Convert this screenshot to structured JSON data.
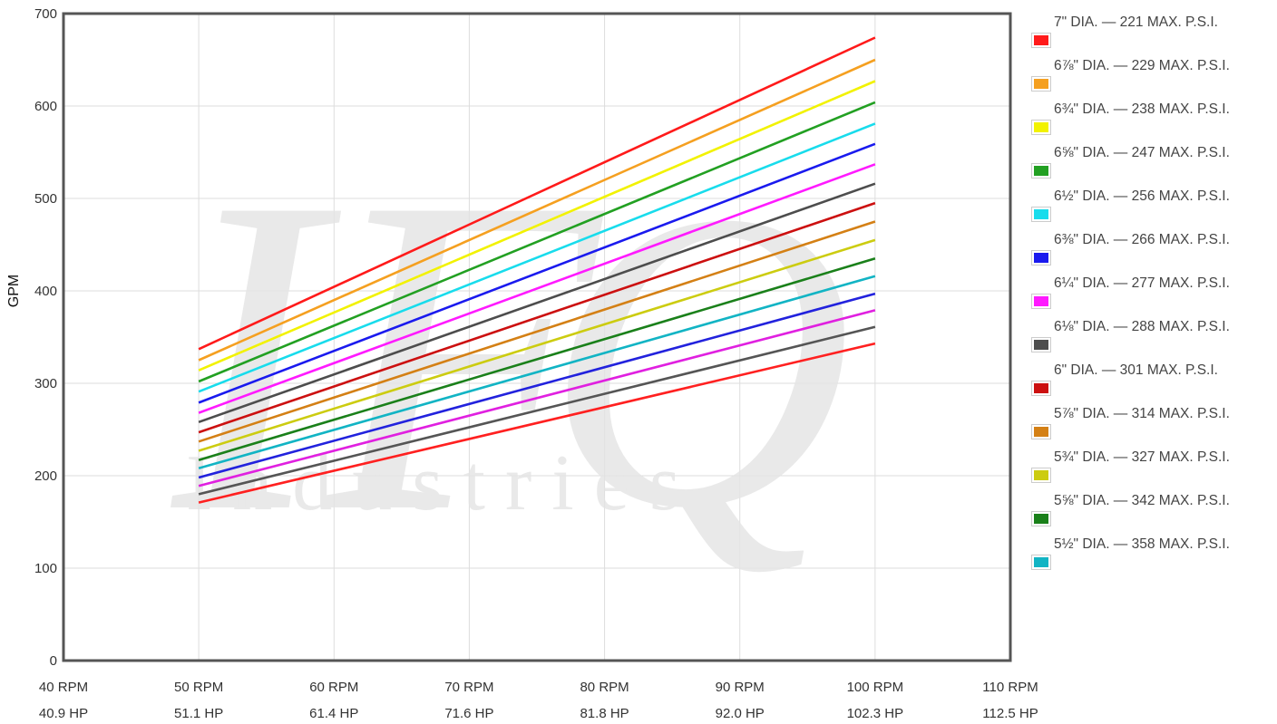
{
  "chart_data": {
    "type": "line",
    "title": "",
    "ylabel": "GPM",
    "xlabel": "",
    "ylim": [
      0,
      700
    ],
    "yticks": [
      0,
      100,
      200,
      300,
      400,
      500,
      600,
      700
    ],
    "xlim": [
      40,
      110
    ],
    "x": [
      50,
      100
    ],
    "xticks": [
      {
        "rpm": 40,
        "label": "40 RPM",
        "hp_label": "40.9 HP"
      },
      {
        "rpm": 50,
        "label": "50 RPM",
        "hp_label": "51.1 HP"
      },
      {
        "rpm": 60,
        "label": "60 RPM",
        "hp_label": "61.4 HP"
      },
      {
        "rpm": 70,
        "label": "70 RPM",
        "hp_label": "71.6 HP"
      },
      {
        "rpm": 80,
        "label": "80 RPM",
        "hp_label": "81.8 HP"
      },
      {
        "rpm": 90,
        "label": "90 RPM",
        "hp_label": "92.0 HP"
      },
      {
        "rpm": 100,
        "label": "100 RPM",
        "hp_label": "102.3 HP"
      },
      {
        "rpm": 110,
        "label": "110 RPM",
        "hp_label": "112.5 HP"
      }
    ],
    "grid": true,
    "legend_position": "right",
    "watermark": {
      "logo_text": "IFQ",
      "subtext": "Industries"
    },
    "series": [
      {
        "name": "7\" DIA. — 221 MAX. P.S.I.",
        "color": "#ff1a1a",
        "values": [
          337,
          674
        ]
      },
      {
        "name": "6⅞\" DIA. — 229 MAX. P.S.I.",
        "color": "#f5a020",
        "values": [
          325,
          650
        ]
      },
      {
        "name": "6¾\" DIA. — 238 MAX. P.S.I.",
        "color": "#f2f200",
        "values": [
          314,
          627
        ]
      },
      {
        "name": "6⅝\" DIA. — 247 MAX. P.S.I.",
        "color": "#22a022",
        "values": [
          302,
          604
        ]
      },
      {
        "name": "6½\" DIA. — 256 MAX. P.S.I.",
        "color": "#18dcec",
        "values": [
          291,
          581
        ]
      },
      {
        "name": "6⅜\" DIA. — 266 MAX. P.S.I.",
        "color": "#1a1aee",
        "values": [
          279,
          559
        ]
      },
      {
        "name": "6¼\" DIA. — 277 MAX. P.S.I.",
        "color": "#ff1aff",
        "values": [
          268,
          537
        ]
      },
      {
        "name": "6⅛\" DIA. — 288 MAX. P.S.I.",
        "color": "#4d4d4d",
        "values": [
          258,
          516
        ]
      },
      {
        "name": "6\" DIA. — 301 MAX. P.S.I.",
        "color": "#cc1010",
        "values": [
          247,
          495
        ]
      },
      {
        "name": "5⅞\" DIA. — 314 MAX. P.S.I.",
        "color": "#d48015",
        "values": [
          237,
          475
        ]
      },
      {
        "name": "5¾\" DIA. — 327 MAX. P.S.I.",
        "color": "#cccc10",
        "values": [
          227,
          455
        ]
      },
      {
        "name": "5⅝\" DIA. — 342 MAX. P.S.I.",
        "color": "#1a801a",
        "values": [
          217,
          435
        ]
      },
      {
        "name": "5½\" DIA. — 358 MAX. P.S.I.",
        "color": "#12b4c4",
        "values": [
          208,
          416
        ]
      },
      {
        "name": "",
        "color": "#2222dd",
        "values": [
          198,
          397
        ]
      },
      {
        "name": "",
        "color": "#e020e0",
        "values": [
          189,
          379
        ]
      },
      {
        "name": "",
        "color": "#555555",
        "values": [
          180,
          361
        ]
      },
      {
        "name": "",
        "color": "#ff2020",
        "values": [
          171,
          343
        ]
      }
    ]
  }
}
